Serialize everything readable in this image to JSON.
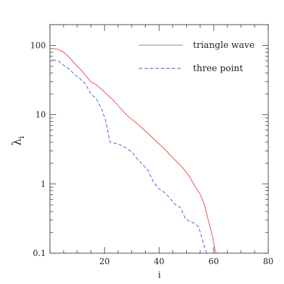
{
  "chart_data": {
    "type": "line",
    "xlabel": "i",
    "ylabel_main": "λ",
    "ylabel_sub": "i",
    "xlim": [
      0,
      80
    ],
    "ylim": [
      0.1,
      200
    ],
    "yscale": "log",
    "grid": false,
    "legend_position": "top-right",
    "x_ticks": [
      20,
      40,
      60,
      80
    ],
    "x_tick_labels": [
      "20",
      "40",
      "60",
      "80"
    ],
    "y_ticks": [
      0.1,
      1,
      10,
      100
    ],
    "y_tick_labels": [
      "0.1",
      "1",
      "10",
      "100"
    ],
    "series": [
      {
        "name": "triangle wave",
        "color": "#e8393a",
        "dash": "solid",
        "points": [
          [
            1,
            90
          ],
          [
            3,
            88
          ],
          [
            5,
            80
          ],
          [
            7,
            68
          ],
          [
            9,
            55
          ],
          [
            11,
            46
          ],
          [
            13,
            37
          ],
          [
            15,
            30
          ],
          [
            17,
            27
          ],
          [
            19,
            23
          ],
          [
            21,
            19.5
          ],
          [
            23,
            16.5
          ],
          [
            25,
            13.5
          ],
          [
            27,
            11
          ],
          [
            29,
            9.2
          ],
          [
            31,
            8
          ],
          [
            33,
            6.8
          ],
          [
            35,
            5.8
          ],
          [
            37,
            4.9
          ],
          [
            39,
            4.1
          ],
          [
            41,
            3.5
          ],
          [
            43,
            2.9
          ],
          [
            45,
            2.4
          ],
          [
            47,
            2
          ],
          [
            49,
            1.65
          ],
          [
            51,
            1.3
          ],
          [
            53,
            0.95
          ],
          [
            55,
            0.72
          ],
          [
            56.5,
            0.52
          ],
          [
            58,
            0.3
          ],
          [
            59.5,
            0.18
          ],
          [
            60.5,
            0.11
          ],
          [
            61,
            0.1
          ]
        ]
      },
      {
        "name": "three point",
        "color": "#4444dd",
        "dash": "dashed",
        "points": [
          [
            1,
            62
          ],
          [
            3,
            60
          ],
          [
            5,
            52
          ],
          [
            7,
            46
          ],
          [
            9,
            38
          ],
          [
            11,
            33
          ],
          [
            13,
            28
          ],
          [
            15,
            20
          ],
          [
            17,
            17
          ],
          [
            19,
            12
          ],
          [
            20.5,
            8
          ],
          [
            22,
            4
          ],
          [
            25,
            3.8
          ],
          [
            28,
            3.3
          ],
          [
            30,
            2.9
          ],
          [
            32,
            2.3
          ],
          [
            34,
            1.9
          ],
          [
            36,
            1.55
          ],
          [
            38,
            1.05
          ],
          [
            40,
            0.85
          ],
          [
            42,
            0.75
          ],
          [
            44,
            0.62
          ],
          [
            46,
            0.5
          ],
          [
            48,
            0.45
          ],
          [
            49.5,
            0.32
          ],
          [
            51,
            0.29
          ],
          [
            53,
            0.27
          ],
          [
            54.5,
            0.24
          ],
          [
            56,
            0.15
          ],
          [
            57,
            0.11
          ],
          [
            57.5,
            0.1
          ]
        ]
      }
    ]
  }
}
